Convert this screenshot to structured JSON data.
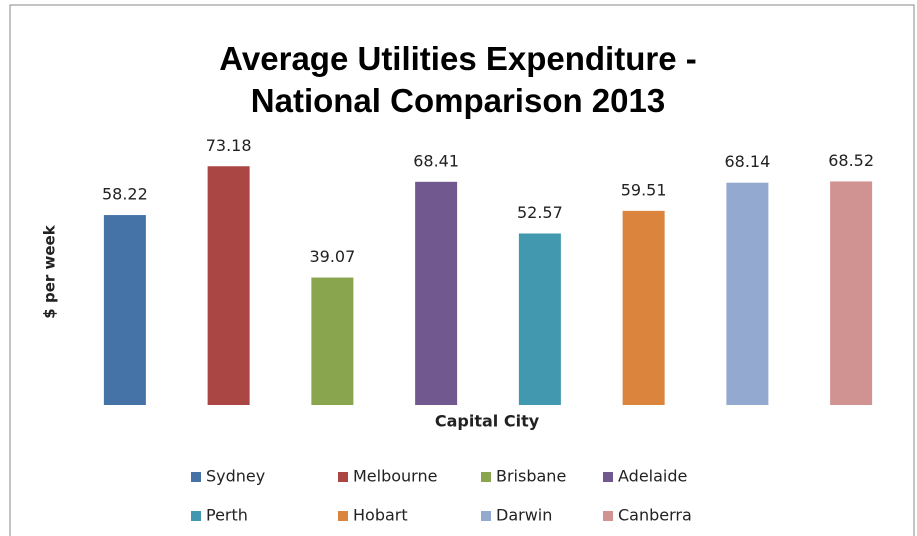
{
  "chart_data": {
    "type": "bar",
    "title": "Average Utilities Expenditure - National Comparison 2013",
    "y_label": "$ per week",
    "x_label": "Capital City",
    "categories": [
      "Sydney",
      "Melbourne",
      "Brisbane",
      "Adelaide",
      "Perth",
      "Hobart",
      "Darwin",
      "Canberra"
    ],
    "values": [
      58.22,
      73.18,
      39.07,
      68.41,
      52.57,
      59.51,
      68.14,
      68.52
    ],
    "colors": [
      "#4572a7",
      "#aa4643",
      "#89a54e",
      "#71588f",
      "#4198af",
      "#db843d",
      "#93a9cf",
      "#d19392"
    ],
    "ylim": [
      0,
      80
    ],
    "legend": "bottom"
  }
}
